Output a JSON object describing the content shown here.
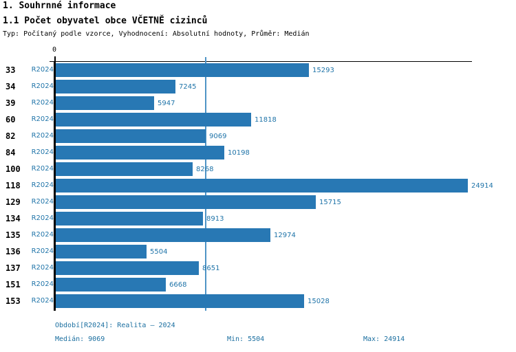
{
  "header": {
    "title": "1. Souhrnné informace",
    "subtitle": "1.1 Počet obyvatel obce VČETNĚ cizinců",
    "meta": "Typ: Počítaný podle vzorce, Vyhodnocení: Absolutní hodnoty, Průměr: Medián"
  },
  "chart": {
    "zero_label": "0",
    "rows": [
      {
        "id": "33",
        "period": "R2024",
        "value": 15293,
        "label": "15293"
      },
      {
        "id": "34",
        "period": "R2024",
        "value": 7245,
        "label": "7245"
      },
      {
        "id": "39",
        "period": "R2024",
        "value": 5947,
        "label": "5947"
      },
      {
        "id": "60",
        "period": "R2024",
        "value": 11818,
        "label": "11818"
      },
      {
        "id": "82",
        "period": "R2024",
        "value": 9069,
        "label": "9069"
      },
      {
        "id": "84",
        "period": "R2024",
        "value": 10198,
        "label": "10198"
      },
      {
        "id": "100",
        "period": "R2024",
        "value": 8268,
        "label": "8268"
      },
      {
        "id": "118",
        "period": "R2024",
        "value": 24914,
        "label": "24914"
      },
      {
        "id": "129",
        "period": "R2024",
        "value": 15715,
        "label": "15715"
      },
      {
        "id": "134",
        "period": "R2024",
        "value": 8913,
        "label": "8913"
      },
      {
        "id": "135",
        "period": "R2024",
        "value": 12974,
        "label": "12974"
      },
      {
        "id": "136",
        "period": "R2024",
        "value": 5504,
        "label": "5504"
      },
      {
        "id": "137",
        "period": "R2024",
        "value": 8651,
        "label": "8651"
      },
      {
        "id": "151",
        "period": "R2024",
        "value": 6668,
        "label": "6668"
      },
      {
        "id": "153",
        "period": "R2024",
        "value": 15028,
        "label": "15028"
      }
    ]
  },
  "footer": {
    "period": "Období[R2024]: Realita – 2024",
    "median": "Medián: 9069",
    "min": "Min: 5504",
    "max": "Max: 24914"
  },
  "colors": {
    "bar": "#2878b4",
    "accent_text": "#1e73a8",
    "median_line": "#4e94c6",
    "footer_text": "#1b6fa0"
  },
  "chart_data": {
    "type": "bar",
    "orientation": "horizontal",
    "title": "1.1 Počet obyvatel obce VČETNĚ cizinců",
    "categories": [
      "33",
      "34",
      "39",
      "60",
      "82",
      "84",
      "100",
      "118",
      "129",
      "134",
      "135",
      "136",
      "137",
      "151",
      "153"
    ],
    "series": [
      {
        "name": "R2024",
        "values": [
          15293,
          7245,
          5947,
          11818,
          9069,
          10198,
          8268,
          24914,
          15715,
          8913,
          12974,
          5504,
          8651,
          6668,
          15028
        ]
      }
    ],
    "xlabel": "",
    "ylabel": "",
    "xlim": [
      0,
      25500
    ],
    "x_ticks": [
      0
    ],
    "value_labels": true,
    "grid": false,
    "legend": false,
    "reference_line": {
      "axis": "x",
      "value": 9069,
      "meaning": "median"
    },
    "stats": {
      "median": 9069,
      "min": 5504,
      "max": 24914
    }
  }
}
